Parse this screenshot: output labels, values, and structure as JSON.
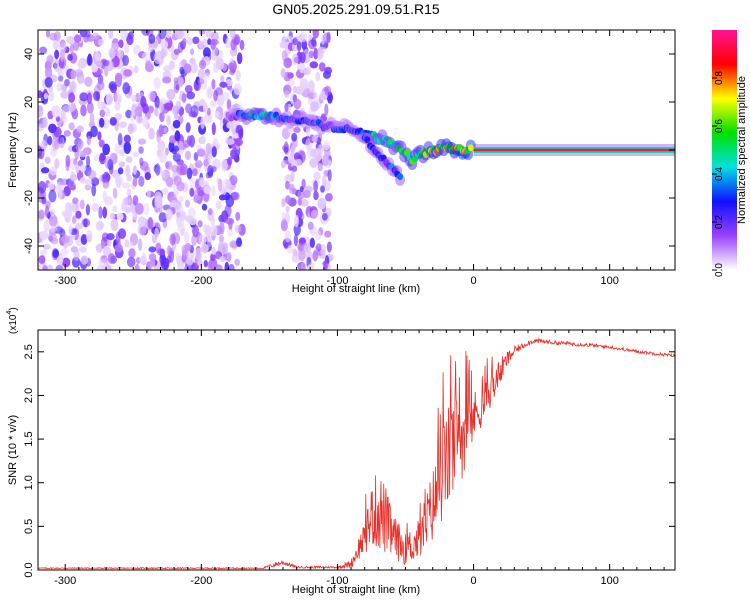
{
  "title": "GN05.2025.291.09.51.R15",
  "chart_data": [
    {
      "type": "heatmap",
      "name": "spectrogram",
      "xlabel": "Height of straight line (km)",
      "ylabel": "Frequency (Hz)",
      "xlim": [
        -320,
        148
      ],
      "ylim": [
        -50,
        50
      ],
      "xticks": [
        -300,
        -200,
        -100,
        0,
        100
      ],
      "xtick_labels": [
        "-300",
        "-200",
        "-100",
        "0",
        "100"
      ],
      "yticks": [
        -40,
        -20,
        0,
        20,
        40
      ],
      "ytick_labels": [
        "-40",
        "-20",
        "0",
        "20",
        "40"
      ],
      "colorbar": {
        "label": "Normalized spectral amplitude",
        "range": [
          0,
          1
        ],
        "ticks": [
          0.0,
          0.2,
          0.4,
          0.6,
          0.8
        ],
        "tick_labels": [
          "0.0",
          "0.2",
          "0.4",
          "0.6",
          "0.8"
        ],
        "stops": [
          "#ffffff",
          "#9a40ff",
          "#1010ff",
          "#00e0e0",
          "#00e000",
          "#ffff00",
          "#ff0000",
          "#ff1493"
        ]
      },
      "signal_track": [
        {
          "x": -180,
          "y": 14,
          "a": 0.15
        },
        {
          "x": -165,
          "y": 15,
          "a": 0.45
        },
        {
          "x": -155,
          "y": 14,
          "a": 0.6
        },
        {
          "x": -145,
          "y": 14,
          "a": 0.4
        },
        {
          "x": -135,
          "y": 13,
          "a": 0.3
        },
        {
          "x": -125,
          "y": 12,
          "a": 0.3
        },
        {
          "x": -110,
          "y": 10,
          "a": 0.3
        },
        {
          "x": -95,
          "y": 9,
          "a": 0.3
        },
        {
          "x": -85,
          "y": 8,
          "a": 0.3
        },
        {
          "x": -75,
          "y": 6,
          "a": 0.45
        },
        {
          "x": -65,
          "y": 4,
          "a": 0.5
        },
        {
          "x": -55,
          "y": 1,
          "a": 0.55
        },
        {
          "x": -45,
          "y": -4,
          "a": 0.7
        },
        {
          "x": -35,
          "y": -1,
          "a": 0.65
        },
        {
          "x": -20,
          "y": 1,
          "a": 0.75
        },
        {
          "x": -10,
          "y": 0,
          "a": 0.85
        },
        {
          "x": 0,
          "y": 0,
          "a": 0.9
        },
        {
          "x": 148,
          "y": 0,
          "a": 0.9
        }
      ],
      "secondary_track": [
        {
          "x": -80,
          "y": 5,
          "a": 0.3
        },
        {
          "x": -70,
          "y": -2,
          "a": 0.35
        },
        {
          "x": -60,
          "y": -7,
          "a": 0.35
        },
        {
          "x": -52,
          "y": -13,
          "a": 0.4
        }
      ],
      "noise_regions": [
        {
          "x0": -320,
          "x1": -170,
          "y0": -50,
          "y1": 50
        },
        {
          "x0": -140,
          "x1": -105,
          "y0": -50,
          "y1": 50
        }
      ]
    },
    {
      "type": "line",
      "name": "snr",
      "xlabel": "Height of straight line (km)",
      "ylabel": "SNR (10 * v/v)",
      "y_multiplier_label": "(x10",
      "y_multiplier_exp": "4",
      "y_multiplier_close": ")",
      "xlim": [
        -320,
        148
      ],
      "ylim": [
        0,
        2.75
      ],
      "xticks": [
        -300,
        -200,
        -100,
        0,
        100
      ],
      "xtick_labels": [
        "-300",
        "-200",
        "-100",
        "0",
        "100"
      ],
      "yticks": [
        0,
        0.5,
        1.0,
        1.5,
        2.0,
        2.5
      ],
      "ytick_labels": [
        "0.0",
        "0.5",
        "1.0",
        "1.5",
        "2.0",
        "2.5"
      ],
      "color": "#e8302a",
      "envelope": {
        "x": [
          -320,
          -200,
          -155,
          -145,
          -140,
          -130,
          -100,
          -90,
          -80,
          -75,
          -70,
          -65,
          -60,
          -50,
          -45,
          -40,
          -35,
          -30,
          -25,
          -20,
          -15,
          -10,
          -5,
          0,
          5,
          10,
          15,
          20,
          25,
          30,
          35,
          40,
          45,
          60,
          80,
          100,
          120,
          148
        ],
        "base": [
          0.02,
          0.02,
          0.02,
          0.06,
          0.08,
          0.03,
          0.03,
          0.06,
          0.35,
          0.55,
          0.6,
          0.5,
          0.35,
          0.2,
          0.25,
          0.3,
          0.45,
          0.65,
          0.9,
          1.1,
          1.3,
          1.4,
          1.55,
          1.7,
          1.8,
          1.95,
          2.1,
          2.25,
          2.4,
          2.5,
          2.55,
          2.6,
          2.62,
          2.6,
          2.58,
          2.55,
          2.5,
          2.45
        ],
        "amp": [
          0.01,
          0.01,
          0.01,
          0.05,
          0.05,
          0.02,
          0.02,
          0.08,
          0.35,
          0.6,
          0.8,
          0.7,
          0.45,
          0.3,
          0.35,
          0.4,
          0.6,
          0.7,
          0.9,
          1.0,
          1.0,
          0.9,
          0.7,
          0.5,
          0.4,
          0.35,
          0.3,
          0.25,
          0.15,
          0.1,
          0.06,
          0.05,
          0.05,
          0.04,
          0.04,
          0.03,
          0.03,
          0.03
        ]
      }
    }
  ]
}
